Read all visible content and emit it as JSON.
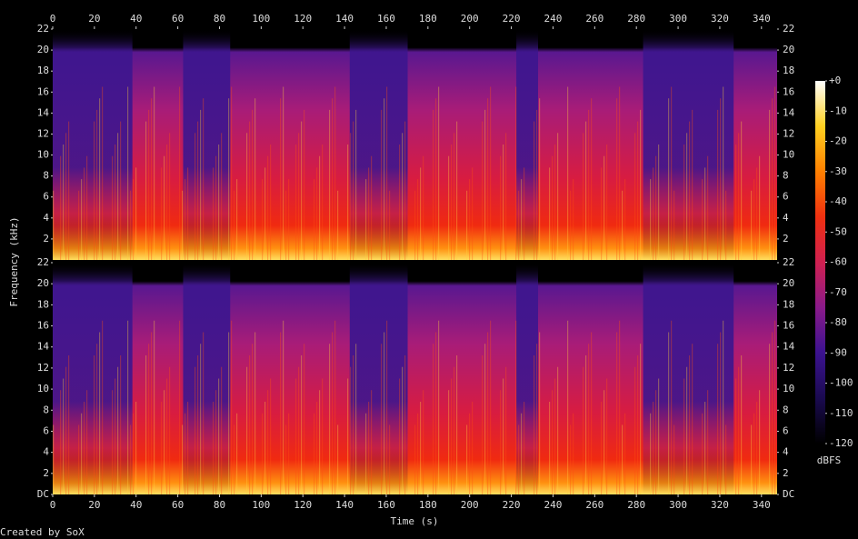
{
  "chart_data": [
    {
      "type": "spectrogram",
      "ylabel": "Frequency (kHz)",
      "xlim": [
        0,
        347.5
      ],
      "xticks": [
        0,
        20,
        40,
        60,
        80,
        100,
        120,
        140,
        160,
        180,
        200,
        220,
        240,
        260,
        280,
        300,
        320,
        340
      ],
      "ylim": [
        0,
        22
      ],
      "yticks": [
        2,
        4,
        6,
        8,
        10,
        12,
        14,
        16,
        18,
        20,
        22
      ],
      "colorbar": {
        "zlim": [
          -120,
          0
        ],
        "zticks": [
          {
            "value": 0,
            "label": "+0"
          },
          -10,
          -20,
          -30,
          -40,
          -50,
          -60,
          -70,
          -80,
          -90,
          -100,
          -110,
          -120
        ],
        "zlabel": "dBFS",
        "colormap": [
          "#000000",
          "#1a0a50",
          "#3b1290",
          "#8a1a8a",
          "#d02050",
          "#f03010",
          "#ff8000",
          "#ffd020",
          "#ffffff"
        ]
      }
    },
    {
      "type": "spectrogram",
      "xlabel": "Time (s)",
      "xlim": [
        0,
        347.5
      ],
      "xticks": [
        0,
        20,
        40,
        60,
        80,
        100,
        120,
        140,
        160,
        180,
        200,
        220,
        240,
        260,
        280,
        300,
        320,
        340
      ],
      "ylim": [
        0,
        22
      ],
      "yticks": [
        {
          "value": 0,
          "label": "DC"
        },
        2,
        4,
        6,
        8,
        10,
        12,
        14,
        16,
        18,
        20,
        22
      ]
    }
  ],
  "footer": "Created by SoX"
}
